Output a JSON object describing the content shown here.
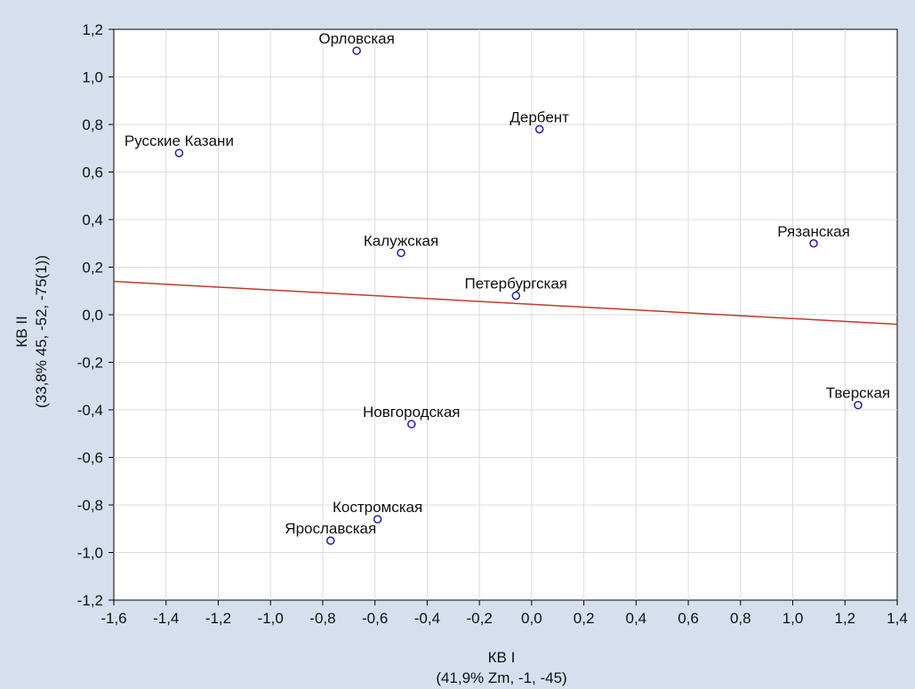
{
  "chart_data": {
    "type": "scatter",
    "xlabel_line1": "КВ I",
    "xlabel_line2": "(41,9% Zm, -1, -45)",
    "ylabel_line1": "КВ II",
    "ylabel_line2": "(33,8% 45, -52, -75(1))",
    "xlim": [
      -1.6,
      1.4
    ],
    "ylim": [
      -1.2,
      1.2
    ],
    "xticks": [
      -1.6,
      -1.4,
      -1.2,
      -1.0,
      -0.8,
      -0.6,
      -0.4,
      -0.2,
      0.0,
      0.2,
      0.4,
      0.6,
      0.8,
      1.0,
      1.2,
      1.4
    ],
    "yticks": [
      -1.2,
      -1.0,
      -0.8,
      -0.6,
      -0.4,
      -0.2,
      0.0,
      0.2,
      0.4,
      0.6,
      0.8,
      1.0,
      1.2
    ],
    "xtick_labels": [
      "-1,6",
      "-1,4",
      "-1,2",
      "-1,0",
      "-0,8",
      "-0,6",
      "-0,4",
      "-0,2",
      "0,0",
      "0,2",
      "0,4",
      "0,6",
      "0,8",
      "1,0",
      "1,2",
      "1,4"
    ],
    "ytick_labels": [
      "-1,2",
      "-1,0",
      "-0,8",
      "-0,6",
      "-0,4",
      "-0,2",
      "0,0",
      "0,2",
      "0,4",
      "0,6",
      "0,8",
      "1,0",
      "1,2"
    ],
    "grid": true,
    "points": [
      {
        "label": "Орловская",
        "x": -0.67,
        "y": 1.11
      },
      {
        "label": "Русские Казани",
        "x": -1.35,
        "y": 0.68
      },
      {
        "label": "Дербент",
        "x": 0.03,
        "y": 0.78
      },
      {
        "label": "Калужская",
        "x": -0.5,
        "y": 0.26
      },
      {
        "label": "Рязанская",
        "x": 1.08,
        "y": 0.3
      },
      {
        "label": "Петербургская",
        "x": -0.06,
        "y": 0.08
      },
      {
        "label": "Тверская",
        "x": 1.25,
        "y": -0.38
      },
      {
        "label": "Новгородская",
        "x": -0.46,
        "y": -0.46
      },
      {
        "label": "Костромская",
        "x": -0.59,
        "y": -0.86
      },
      {
        "label": "Ярославская",
        "x": -0.77,
        "y": -0.95
      }
    ],
    "regression_line": {
      "x": [
        -1.6,
        1.4
      ],
      "y": [
        0.14,
        -0.04
      ]
    },
    "colors": {
      "background": "#d5dfee",
      "plot_area": "#ffffff",
      "grid": "#dcdcdc",
      "marker": "#1f1fa8",
      "regression": "#c0392b"
    }
  }
}
